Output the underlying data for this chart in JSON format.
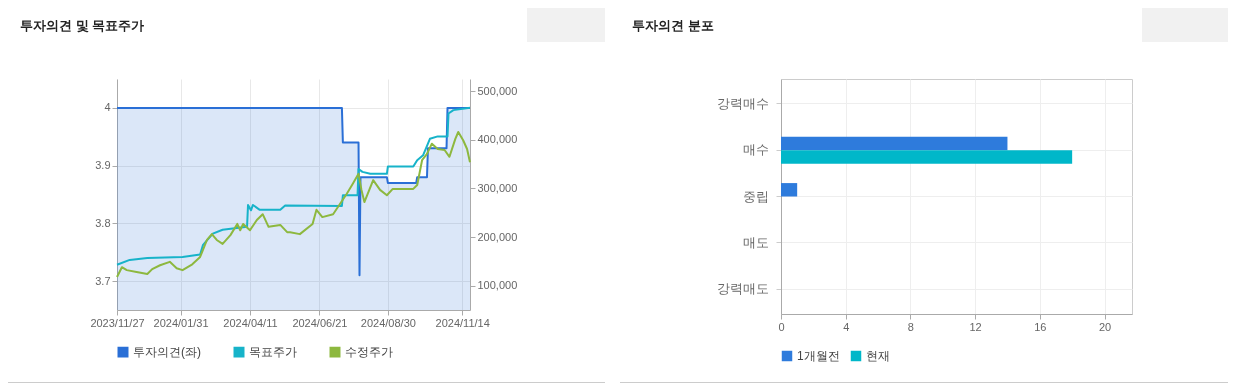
{
  "chart_data": [
    {
      "type": "line",
      "title": "투자의견 및 목표주가",
      "xlim": [
        "2023-11-27",
        "2024-11-22"
      ],
      "xticks": [
        {
          "value": "2023-11-27",
          "label": "2023/11/27"
        },
        {
          "value": "2024-01-31",
          "label": "2024/01/31"
        },
        {
          "value": "2024-04-11",
          "label": "2024/04/11"
        },
        {
          "value": "2024-06-21",
          "label": "2024/06/21"
        },
        {
          "value": "2024-08-30",
          "label": "2024/08/30"
        },
        {
          "value": "2024-11-14",
          "label": "2024/11/14"
        }
      ],
      "ylim": [
        3.65,
        4.05
      ],
      "yticks": [
        3.7,
        3.8,
        3.9,
        4
      ],
      "y2lim": [
        50000,
        525000
      ],
      "y2ticks": [
        {
          "value": 100000,
          "label": "100,000"
        },
        {
          "value": 200000,
          "label": "200,000"
        },
        {
          "value": 300000,
          "label": "300,000"
        },
        {
          "value": 400000,
          "label": "400,000"
        },
        {
          "value": 500000,
          "label": "500,000"
        }
      ],
      "grid": true,
      "legend": "bottom",
      "marker": "none",
      "series": [
        {
          "name": "투자의견(좌)",
          "type": "area",
          "color": "#2a6fd6",
          "x": [
            "2023-11-27",
            "2024-07-14",
            "2024-07-15",
            "2024-07-31",
            "2024-08-01",
            "2024-08-02",
            "2024-08-29",
            "2024-08-30",
            "2024-09-28",
            "2024-09-29",
            "2024-10-09",
            "2024-10-10",
            "2024-10-29",
            "2024-10-30",
            "2024-11-22"
          ],
          "values": [
            4,
            4,
            3.94,
            3.94,
            3.71,
            3.88,
            3.88,
            3.87,
            3.87,
            3.88,
            3.88,
            3.93,
            3.93,
            4,
            4
          ]
        },
        {
          "name": "목표주가",
          "type": "line",
          "axis": "y2",
          "color": "#17b3c9",
          "x": [
            "2023-11-27",
            "2023-12-10",
            "2023-12-28",
            "2024-02-02",
            "2024-02-20",
            "2024-02-23",
            "2024-03-04",
            "2024-03-14",
            "2024-04-08",
            "2024-04-09",
            "2024-04-12",
            "2024-04-14",
            "2024-04-21",
            "2024-05-12",
            "2024-05-17",
            "2024-07-14",
            "2024-07-15",
            "2024-07-30",
            "2024-07-31",
            "2024-08-04",
            "2024-08-12",
            "2024-08-29",
            "2024-08-30",
            "2024-09-25",
            "2024-09-29",
            "2024-10-05",
            "2024-10-12",
            "2024-10-20",
            "2024-10-30",
            "2024-10-31",
            "2024-11-05",
            "2024-11-22"
          ],
          "values": [
            143000,
            153000,
            157000,
            159000,
            164000,
            184000,
            207000,
            215000,
            221000,
            266000,
            255000,
            266000,
            256000,
            256000,
            265000,
            264000,
            286000,
            286000,
            340000,
            334000,
            330000,
            330000,
            345000,
            345000,
            358000,
            368000,
            402000,
            407000,
            407000,
            454000,
            461000,
            466000
          ]
        },
        {
          "name": "수정주가",
          "type": "line",
          "axis": "y2",
          "color": "#8db83f",
          "x": [
            "2023-11-27",
            "2023-12-02",
            "2023-12-07",
            "2023-12-17",
            "2023-12-28",
            "2024-01-02",
            "2024-01-10",
            "2024-01-20",
            "2024-01-27",
            "2024-02-02",
            "2024-02-12",
            "2024-02-20",
            "2024-02-27",
            "2024-03-03",
            "2024-03-08",
            "2024-03-14",
            "2024-03-22",
            "2024-03-29",
            "2024-04-01",
            "2024-04-04",
            "2024-04-11",
            "2024-04-18",
            "2024-04-24",
            "2024-04-30",
            "2024-05-12",
            "2024-05-19",
            "2024-05-22",
            "2024-06-01",
            "2024-06-14",
            "2024-06-18",
            "2024-06-24",
            "2024-07-05",
            "2024-07-12",
            "2024-07-19",
            "2024-07-25",
            "2024-07-31",
            "2024-08-03",
            "2024-08-06",
            "2024-08-15",
            "2024-08-22",
            "2024-08-29",
            "2024-09-04",
            "2024-09-25",
            "2024-09-29",
            "2024-10-04",
            "2024-10-09",
            "2024-10-14",
            "2024-10-20",
            "2024-10-27",
            "2024-11-01",
            "2024-11-07",
            "2024-11-10",
            "2024-11-15",
            "2024-11-19",
            "2024-11-22"
          ],
          "values": [
            118000,
            138000,
            132000,
            128000,
            124000,
            134000,
            142000,
            149000,
            136000,
            132000,
            144000,
            159000,
            194000,
            206000,
            194000,
            186000,
            204000,
            227000,
            214000,
            227000,
            214000,
            235000,
            247000,
            221000,
            225000,
            210000,
            210000,
            206000,
            227000,
            256000,
            241000,
            247000,
            268000,
            289000,
            309000,
            330000,
            297000,
            272000,
            317000,
            297000,
            286000,
            299000,
            299000,
            307000,
            358000,
            371000,
            392000,
            381000,
            379000,
            365000,
            402000,
            416000,
            399000,
            381000,
            354000
          ]
        }
      ]
    },
    {
      "type": "bar",
      "title": "투자의견 분포",
      "orientation": "horizontal",
      "categories": [
        "강력매수",
        "매수",
        "중립",
        "매도",
        "강력매도"
      ],
      "xlim": [
        0,
        21.7
      ],
      "xticks": [
        0,
        4,
        8,
        12,
        16,
        20
      ],
      "grid": true,
      "legend": "bottom",
      "series": [
        {
          "name": "1개월전",
          "color": "#2e7bdc",
          "values": [
            0,
            14,
            1,
            0,
            0
          ]
        },
        {
          "name": "현재",
          "color": "#00b7c9",
          "values": [
            0,
            18,
            0,
            0,
            0
          ]
        }
      ]
    }
  ]
}
